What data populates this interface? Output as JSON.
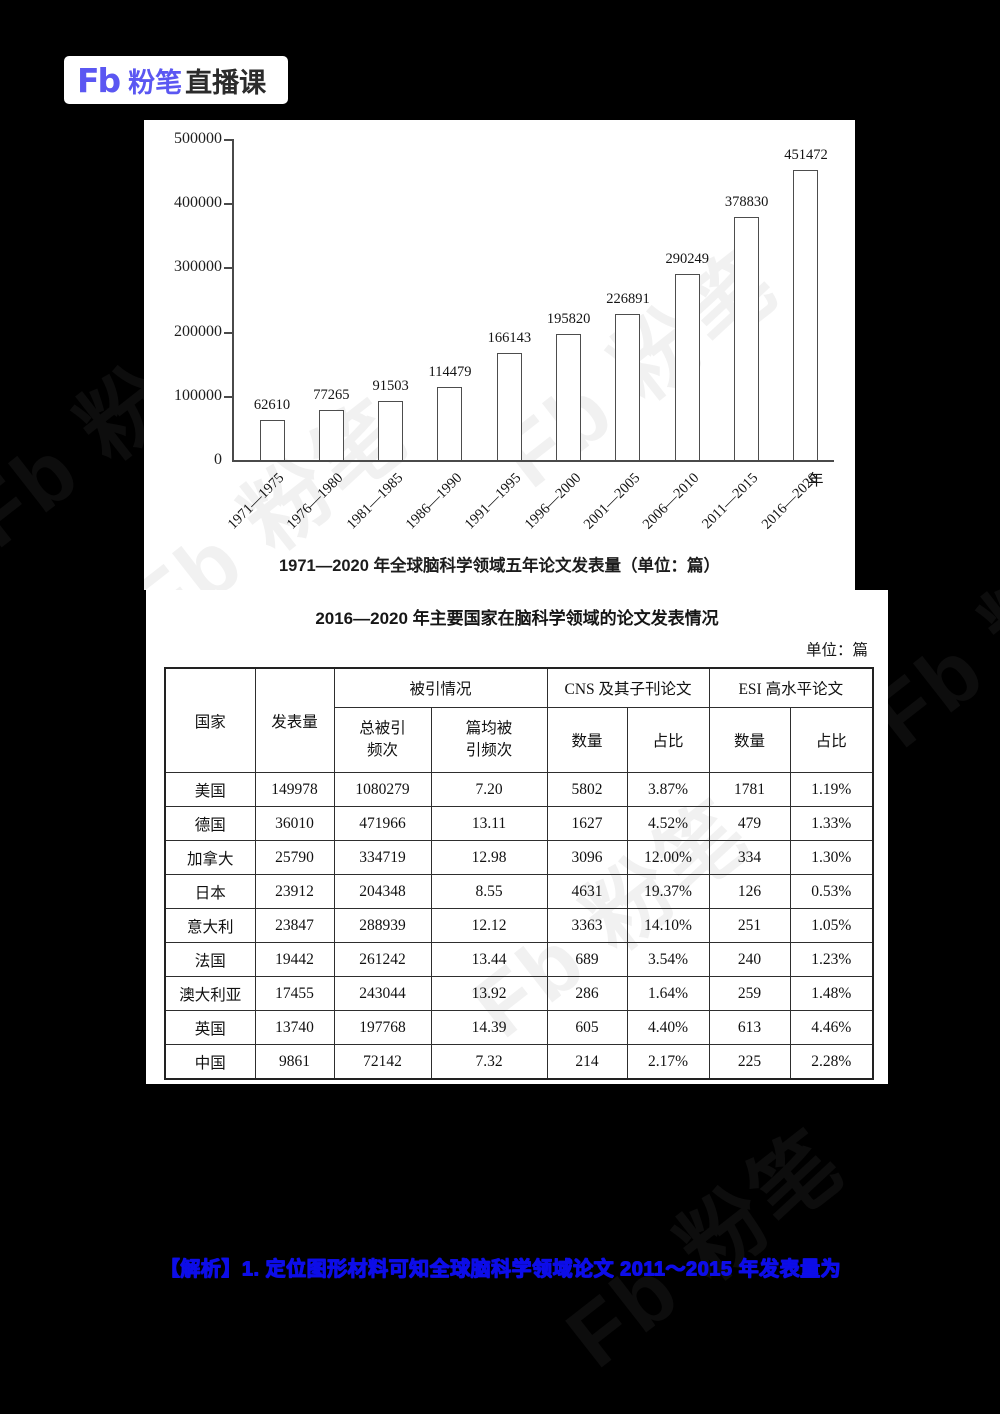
{
  "logo": {
    "mark": "Fb",
    "brand_purple": "粉笔",
    "brand_dark": "直播课",
    "purple_hex": "#5b57f2",
    "dark_hex": "#2b2b2b"
  },
  "chart_data": [
    {
      "type": "bar",
      "title": "1971—2020 年全球脑科学领域五年论文发表量（单位：篇）",
      "categories": [
        "1971—1975",
        "1976—1980",
        "1981—1985",
        "1986—1990",
        "1991—1995",
        "1996—2000",
        "2001—2005",
        "2006—2010",
        "2011—2015",
        "2016—2020"
      ],
      "values": [
        62610,
        77265,
        91503,
        114479,
        166143,
        195820,
        226891,
        290249,
        378830,
        451472
      ],
      "xlabel": "年",
      "ylabel": "",
      "ylim": [
        0,
        500000
      ],
      "y_ticks": [
        "500000",
        "400000",
        "300000",
        "200000",
        "100000",
        "0"
      ],
      "grid": false,
      "legend": "none",
      "bar_fill": "#ffffff",
      "bar_border": "#4d4d4d"
    },
    {
      "type": "table",
      "title": "2016—2020 年主要国家在脑科学领域的论文发表情况",
      "unit_note": "单位：篇",
      "headers": {
        "country": "国家",
        "publications": "发表量",
        "citation_group": "被引情况",
        "total_cite_l1": "总被引",
        "total_cite_l2": "频次",
        "avg_cite_l1": "篇均被",
        "avg_cite_l2": "引频次",
        "cns_group": "CNS 及其子刊论文",
        "esi_group": "ESI 高水平论文",
        "count": "数量",
        "ratio": "占比"
      },
      "rows": [
        {
          "country": "美国",
          "pub": "149978",
          "total": "1080279",
          "avg": "7.20",
          "cns_n": "5802",
          "cns_r": "3.87%",
          "esi_n": "1781",
          "esi_r": "1.19%"
        },
        {
          "country": "德国",
          "pub": "36010",
          "total": "471966",
          "avg": "13.11",
          "cns_n": "1627",
          "cns_r": "4.52%",
          "esi_n": "479",
          "esi_r": "1.33%"
        },
        {
          "country": "加拿大",
          "pub": "25790",
          "total": "334719",
          "avg": "12.98",
          "cns_n": "3096",
          "cns_r": "12.00%",
          "esi_n": "334",
          "esi_r": "1.30%"
        },
        {
          "country": "日本",
          "pub": "23912",
          "total": "204348",
          "avg": "8.55",
          "cns_n": "4631",
          "cns_r": "19.37%",
          "esi_n": "126",
          "esi_r": "0.53%"
        },
        {
          "country": "意大利",
          "pub": "23847",
          "total": "288939",
          "avg": "12.12",
          "cns_n": "3363",
          "cns_r": "14.10%",
          "esi_n": "251",
          "esi_r": "1.05%"
        },
        {
          "country": "法国",
          "pub": "19442",
          "total": "261242",
          "avg": "13.44",
          "cns_n": "689",
          "cns_r": "3.54%",
          "esi_n": "240",
          "esi_r": "1.23%"
        },
        {
          "country": "澳大利亚",
          "pub": "17455",
          "total": "243044",
          "avg": "13.92",
          "cns_n": "286",
          "cns_r": "1.64%",
          "esi_n": "259",
          "esi_r": "1.48%"
        },
        {
          "country": "英国",
          "pub": "13740",
          "total": "197768",
          "avg": "14.39",
          "cns_n": "605",
          "cns_r": "4.40%",
          "esi_n": "613",
          "esi_r": "4.46%"
        },
        {
          "country": "中国",
          "pub": "9861",
          "total": "72142",
          "avg": "7.32",
          "cns_n": "214",
          "cns_r": "2.17%",
          "esi_n": "225",
          "esi_r": "2.28%"
        }
      ]
    }
  ],
  "solution": {
    "text": "【解析】1. 定位图形材料可知全球脑科学领域论文 2011～2015 年发表量为",
    "color": "#0d0de8"
  },
  "watermark": {
    "text": "Fb 粉笔"
  }
}
